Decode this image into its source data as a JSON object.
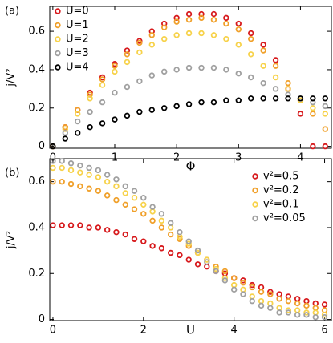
{
  "chart_data": [
    {
      "type": "scatter",
      "panel_label": "(a)",
      "x_label": "Φ",
      "y_label": "j/V²",
      "xlim": [
        -0.05,
        4.5
      ],
      "ylim": [
        -0.01,
        0.73
      ],
      "xticks": [
        0,
        1,
        2,
        3,
        4
      ],
      "yticks": [
        0,
        0.2,
        0.4,
        0.6
      ],
      "legend": "upper left",
      "x": [
        0,
        0.2,
        0.4,
        0.6,
        0.8,
        1,
        1.2,
        1.4,
        1.6,
        1.8,
        2,
        2.2,
        2.4,
        2.6,
        2.8,
        3,
        3.2,
        3.4,
        3.6,
        3.8,
        4,
        4.2,
        4.4
      ],
      "series": [
        {
          "name": "U=0",
          "color": "#d7191c",
          "values": [
            0,
            0.1,
            0.19,
            0.28,
            0.36,
            0.43,
            0.5,
            0.55,
            0.6,
            0.64,
            0.67,
            0.69,
            0.69,
            0.69,
            0.67,
            0.64,
            0.59,
            0.53,
            0.45,
            0.3,
            0.17,
            0,
            0
          ]
        },
        {
          "name": "U=1",
          "color": "#f0a02a",
          "values": [
            0,
            0.1,
            0.19,
            0.27,
            0.35,
            0.42,
            0.48,
            0.54,
            0.58,
            0.62,
            0.65,
            0.66,
            0.67,
            0.66,
            0.64,
            0.61,
            0.56,
            0.5,
            0.42,
            0.33,
            0.24,
            0.17,
            0.09
          ]
        },
        {
          "name": "U=2",
          "color": "#f7d24a",
          "values": [
            0,
            0.09,
            0.17,
            0.25,
            0.32,
            0.39,
            0.44,
            0.49,
            0.53,
            0.56,
            0.58,
            0.59,
            0.59,
            0.58,
            0.56,
            0.53,
            0.48,
            0.42,
            0.36,
            0.3,
            0.24,
            0.2,
            0.17
          ]
        },
        {
          "name": "U=3",
          "color": "#a0a0a0",
          "values": [
            0,
            0.07,
            0.13,
            0.18,
            0.23,
            0.28,
            0.31,
            0.34,
            0.37,
            0.39,
            0.4,
            0.41,
            0.41,
            0.41,
            0.4,
            0.38,
            0.36,
            0.33,
            0.3,
            0.27,
            0.25,
            0.23,
            0.21
          ]
        },
        {
          "name": "U=4",
          "color": "#000000",
          "values": [
            0,
            0.04,
            0.07,
            0.1,
            0.12,
            0.14,
            0.16,
            0.18,
            0.19,
            0.2,
            0.21,
            0.22,
            0.23,
            0.23,
            0.24,
            0.24,
            0.25,
            0.25,
            0.25,
            0.25,
            0.25,
            0.25,
            0.25
          ]
        }
      ]
    },
    {
      "type": "scatter",
      "panel_label": "(b)",
      "x_label": "U",
      "y_label": "j/V²",
      "xlim": [
        -0.07,
        6.15
      ],
      "ylim": [
        -0.005,
        0.7
      ],
      "xticks": [
        0,
        2,
        4,
        6
      ],
      "yticks": [
        0,
        0.2,
        0.4,
        0.6
      ],
      "legend": "upper right",
      "x": [
        0,
        0.2,
        0.4,
        0.6,
        0.8,
        1,
        1.2,
        1.4,
        1.6,
        1.8,
        2,
        2.2,
        2.4,
        2.6,
        2.8,
        3,
        3.2,
        3.4,
        3.6,
        3.8,
        4,
        4.2,
        4.4,
        4.6,
        4.8,
        5,
        5.2,
        5.4,
        5.6,
        5.8,
        6
      ],
      "series": [
        {
          "name": "v²=0.5",
          "color": "#d7191c",
          "values": [
            0.41,
            0.41,
            0.41,
            0.41,
            0.4,
            0.4,
            0.39,
            0.38,
            0.37,
            0.35,
            0.34,
            0.32,
            0.31,
            0.29,
            0.28,
            0.26,
            0.24,
            0.23,
            0.21,
            0.2,
            0.18,
            0.17,
            0.15,
            0.14,
            0.12,
            0.11,
            0.1,
            0.09,
            0.08,
            0.07,
            0.065
          ]
        },
        {
          "name": "v²=0.2",
          "color": "#f0a02a",
          "values": [
            0.6,
            0.6,
            0.59,
            0.58,
            0.57,
            0.56,
            0.54,
            0.52,
            0.5,
            0.48,
            0.46,
            0.43,
            0.4,
            0.37,
            0.35,
            0.32,
            0.29,
            0.26,
            0.23,
            0.21,
            0.18,
            0.16,
            0.14,
            0.12,
            0.11,
            0.09,
            0.08,
            0.07,
            0.06,
            0.05,
            0.04
          ]
        },
        {
          "name": "v²=0.1",
          "color": "#f7d24a",
          "values": [
            0.66,
            0.66,
            0.65,
            0.64,
            0.63,
            0.62,
            0.6,
            0.58,
            0.55,
            0.53,
            0.5,
            0.47,
            0.43,
            0.4,
            0.36,
            0.33,
            0.29,
            0.26,
            0.22,
            0.18,
            0.15,
            0.13,
            0.1,
            0.08,
            0.07,
            0.05,
            0.04,
            0.04,
            0.03,
            0.03,
            0.02
          ]
        },
        {
          "name": "v²=0.05",
          "color": "#a0a0a0",
          "values": [
            0.69,
            0.69,
            0.68,
            0.67,
            0.66,
            0.65,
            0.63,
            0.61,
            0.58,
            0.56,
            0.53,
            0.49,
            0.46,
            0.42,
            0.38,
            0.34,
            0.3,
            0.25,
            0.21,
            0.17,
            0.13,
            0.11,
            0.08,
            0.06,
            0.05,
            0.03,
            0.03,
            0.02,
            0.02,
            0.01,
            0.01
          ]
        }
      ]
    }
  ]
}
